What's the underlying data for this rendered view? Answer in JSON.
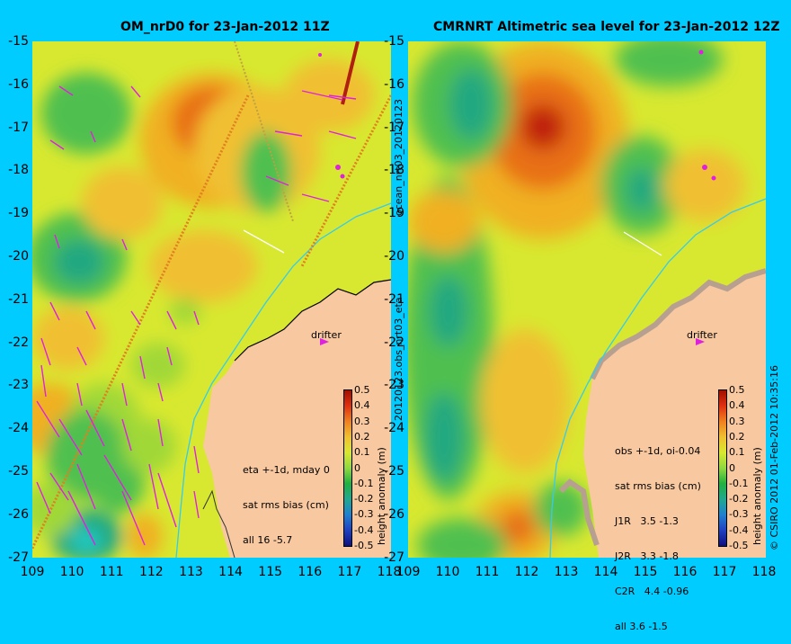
{
  "left_panel": {
    "title": "OM_nrD0 for 23-Jan-2012 11Z",
    "stats": [
      "eta +-1d, mday 0",
      "sat rms bias (cm)",
      "all 16 -5.7"
    ],
    "drifter_label": "drifter"
  },
  "right_panel": {
    "title": "CMRNRT Altimetric sea level  for 23-Jan-2012 12Z",
    "stats": [
      "obs +-1d, oi-0.04",
      "sat rms bias (cm)",
      "J1R   3.5 -1.3",
      "J2R   3.3 -1.8",
      "C2R   4.4 -0.96",
      "all 3.6 -1.5"
    ],
    "drifter_label": "drifter"
  },
  "side_labels": {
    "top": "ocean_nrt03_20120123",
    "bottom": "20120123.obs_nrt03_eta",
    "credit": "© CSIRO 2012  01-Feb-2012 10:35:16"
  },
  "axes": {
    "lat_ticks": [
      "-15",
      "-16",
      "-17",
      "-18",
      "-19",
      "-20",
      "-21",
      "-22",
      "-23",
      "-24",
      "-25",
      "-26",
      "-27"
    ],
    "lon_ticks": [
      "109",
      "110",
      "111",
      "112",
      "113",
      "114",
      "115",
      "116",
      "117",
      "118"
    ]
  },
  "colorbar": {
    "title": "height anomaly (m)",
    "ticks": [
      "0.5",
      "0.4",
      "0.3",
      "0.2",
      "0.1",
      "0",
      "-0.1",
      "-0.2",
      "-0.3",
      "-0.4",
      "-0.5"
    ]
  },
  "colors": {
    "background": "#00ccff",
    "land": "#f8c8a0",
    "arrows": "#e020e0",
    "coast_line": "#33ccee"
  }
}
